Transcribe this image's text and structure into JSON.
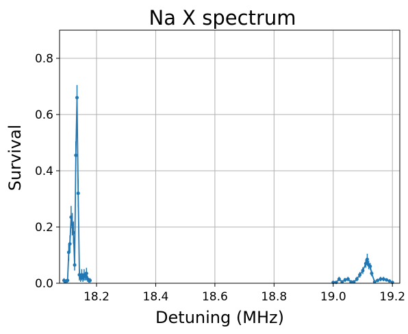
{
  "chart_data": {
    "type": "line",
    "title": "Na X spectrum",
    "xlabel": "Detuning (MHz)",
    "ylabel": "Survival",
    "xlim": [
      18.075,
      19.225
    ],
    "ylim": [
      0.0,
      0.9
    ],
    "grid": true,
    "xticks": [
      18.2,
      18.4,
      18.6,
      18.8,
      19.0,
      19.2
    ],
    "xtick_labels": [
      "18.2",
      "18.4",
      "18.6",
      "18.8",
      "19.0",
      "19.2"
    ],
    "yticks": [
      0.0,
      0.2,
      0.4,
      0.6,
      0.8
    ],
    "ytick_labels": [
      "0.0",
      "0.2",
      "0.4",
      "0.6",
      "0.8"
    ],
    "colors": {
      "series": "#1f77b4",
      "grid": "#b0b0b0"
    },
    "series": [
      {
        "x": [
          18.09,
          18.094,
          18.098,
          18.102,
          18.106,
          18.11,
          18.114,
          18.118,
          18.122,
          18.126,
          18.13,
          18.134,
          18.138,
          18.142,
          18.146,
          18.15,
          18.154,
          18.158,
          18.162,
          18.166,
          18.17,
          18.174,
          18.178
        ],
        "y": [
          0.01,
          0.005,
          0.008,
          0.01,
          0.11,
          0.14,
          0.235,
          0.21,
          0.18,
          0.065,
          0.455,
          0.66,
          0.32,
          0.03,
          0.02,
          0.03,
          0.02,
          0.03,
          0.025,
          0.035,
          0.015,
          0.01,
          0.01
        ],
        "yerr": [
          0.008,
          0.006,
          0.006,
          0.008,
          0.03,
          0.03,
          0.04,
          0.04,
          0.04,
          0.02,
          0.05,
          0.045,
          0.05,
          0.02,
          0.015,
          0.02,
          0.015,
          0.02,
          0.015,
          0.02,
          0.01,
          0.008,
          0.008
        ]
      },
      {
        "x": [
          19.0,
          19.01,
          19.02,
          19.03,
          19.04,
          19.05,
          19.06,
          19.07,
          19.08,
          19.09,
          19.1,
          19.11,
          19.115,
          19.12,
          19.125,
          19.13,
          19.14,
          19.15,
          19.16,
          19.17,
          19.18,
          19.19,
          19.2
        ],
        "y": [
          0.003,
          0.003,
          0.015,
          0.005,
          0.012,
          0.015,
          0.005,
          0.005,
          0.015,
          0.03,
          0.045,
          0.07,
          0.085,
          0.065,
          0.06,
          0.035,
          0.005,
          0.01,
          0.015,
          0.015,
          0.012,
          0.008,
          0.003
        ],
        "yerr": [
          0.004,
          0.004,
          0.008,
          0.005,
          0.007,
          0.008,
          0.005,
          0.005,
          0.008,
          0.01,
          0.012,
          0.015,
          0.02,
          0.015,
          0.012,
          0.01,
          0.005,
          0.006,
          0.008,
          0.008,
          0.006,
          0.005,
          0.004
        ]
      }
    ]
  }
}
